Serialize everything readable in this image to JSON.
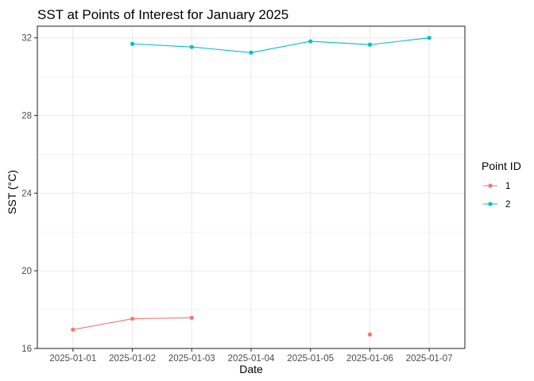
{
  "chart_data": {
    "type": "line",
    "title": "SST at Points of Interest for January 2025",
    "xlabel": "Date",
    "ylabel": "SST (°C)",
    "x": [
      "2025-01-01",
      "2025-01-02",
      "2025-01-03",
      "2025-01-04",
      "2025-01-05",
      "2025-01-06",
      "2025-01-07"
    ],
    "ylim": [
      16,
      32.6
    ],
    "yticks": [
      16,
      20,
      24,
      28,
      32
    ],
    "grid": true,
    "legend": {
      "title": "Point ID",
      "placement": "right"
    },
    "series": [
      {
        "name": "1",
        "color": "#F8766D",
        "values": [
          16.97,
          17.53,
          17.58,
          null,
          null,
          16.72,
          null
        ]
      },
      {
        "name": "2",
        "color": "#00BFC4",
        "values": [
          null,
          31.69,
          31.53,
          31.24,
          31.82,
          31.65,
          32.0
        ]
      }
    ]
  }
}
